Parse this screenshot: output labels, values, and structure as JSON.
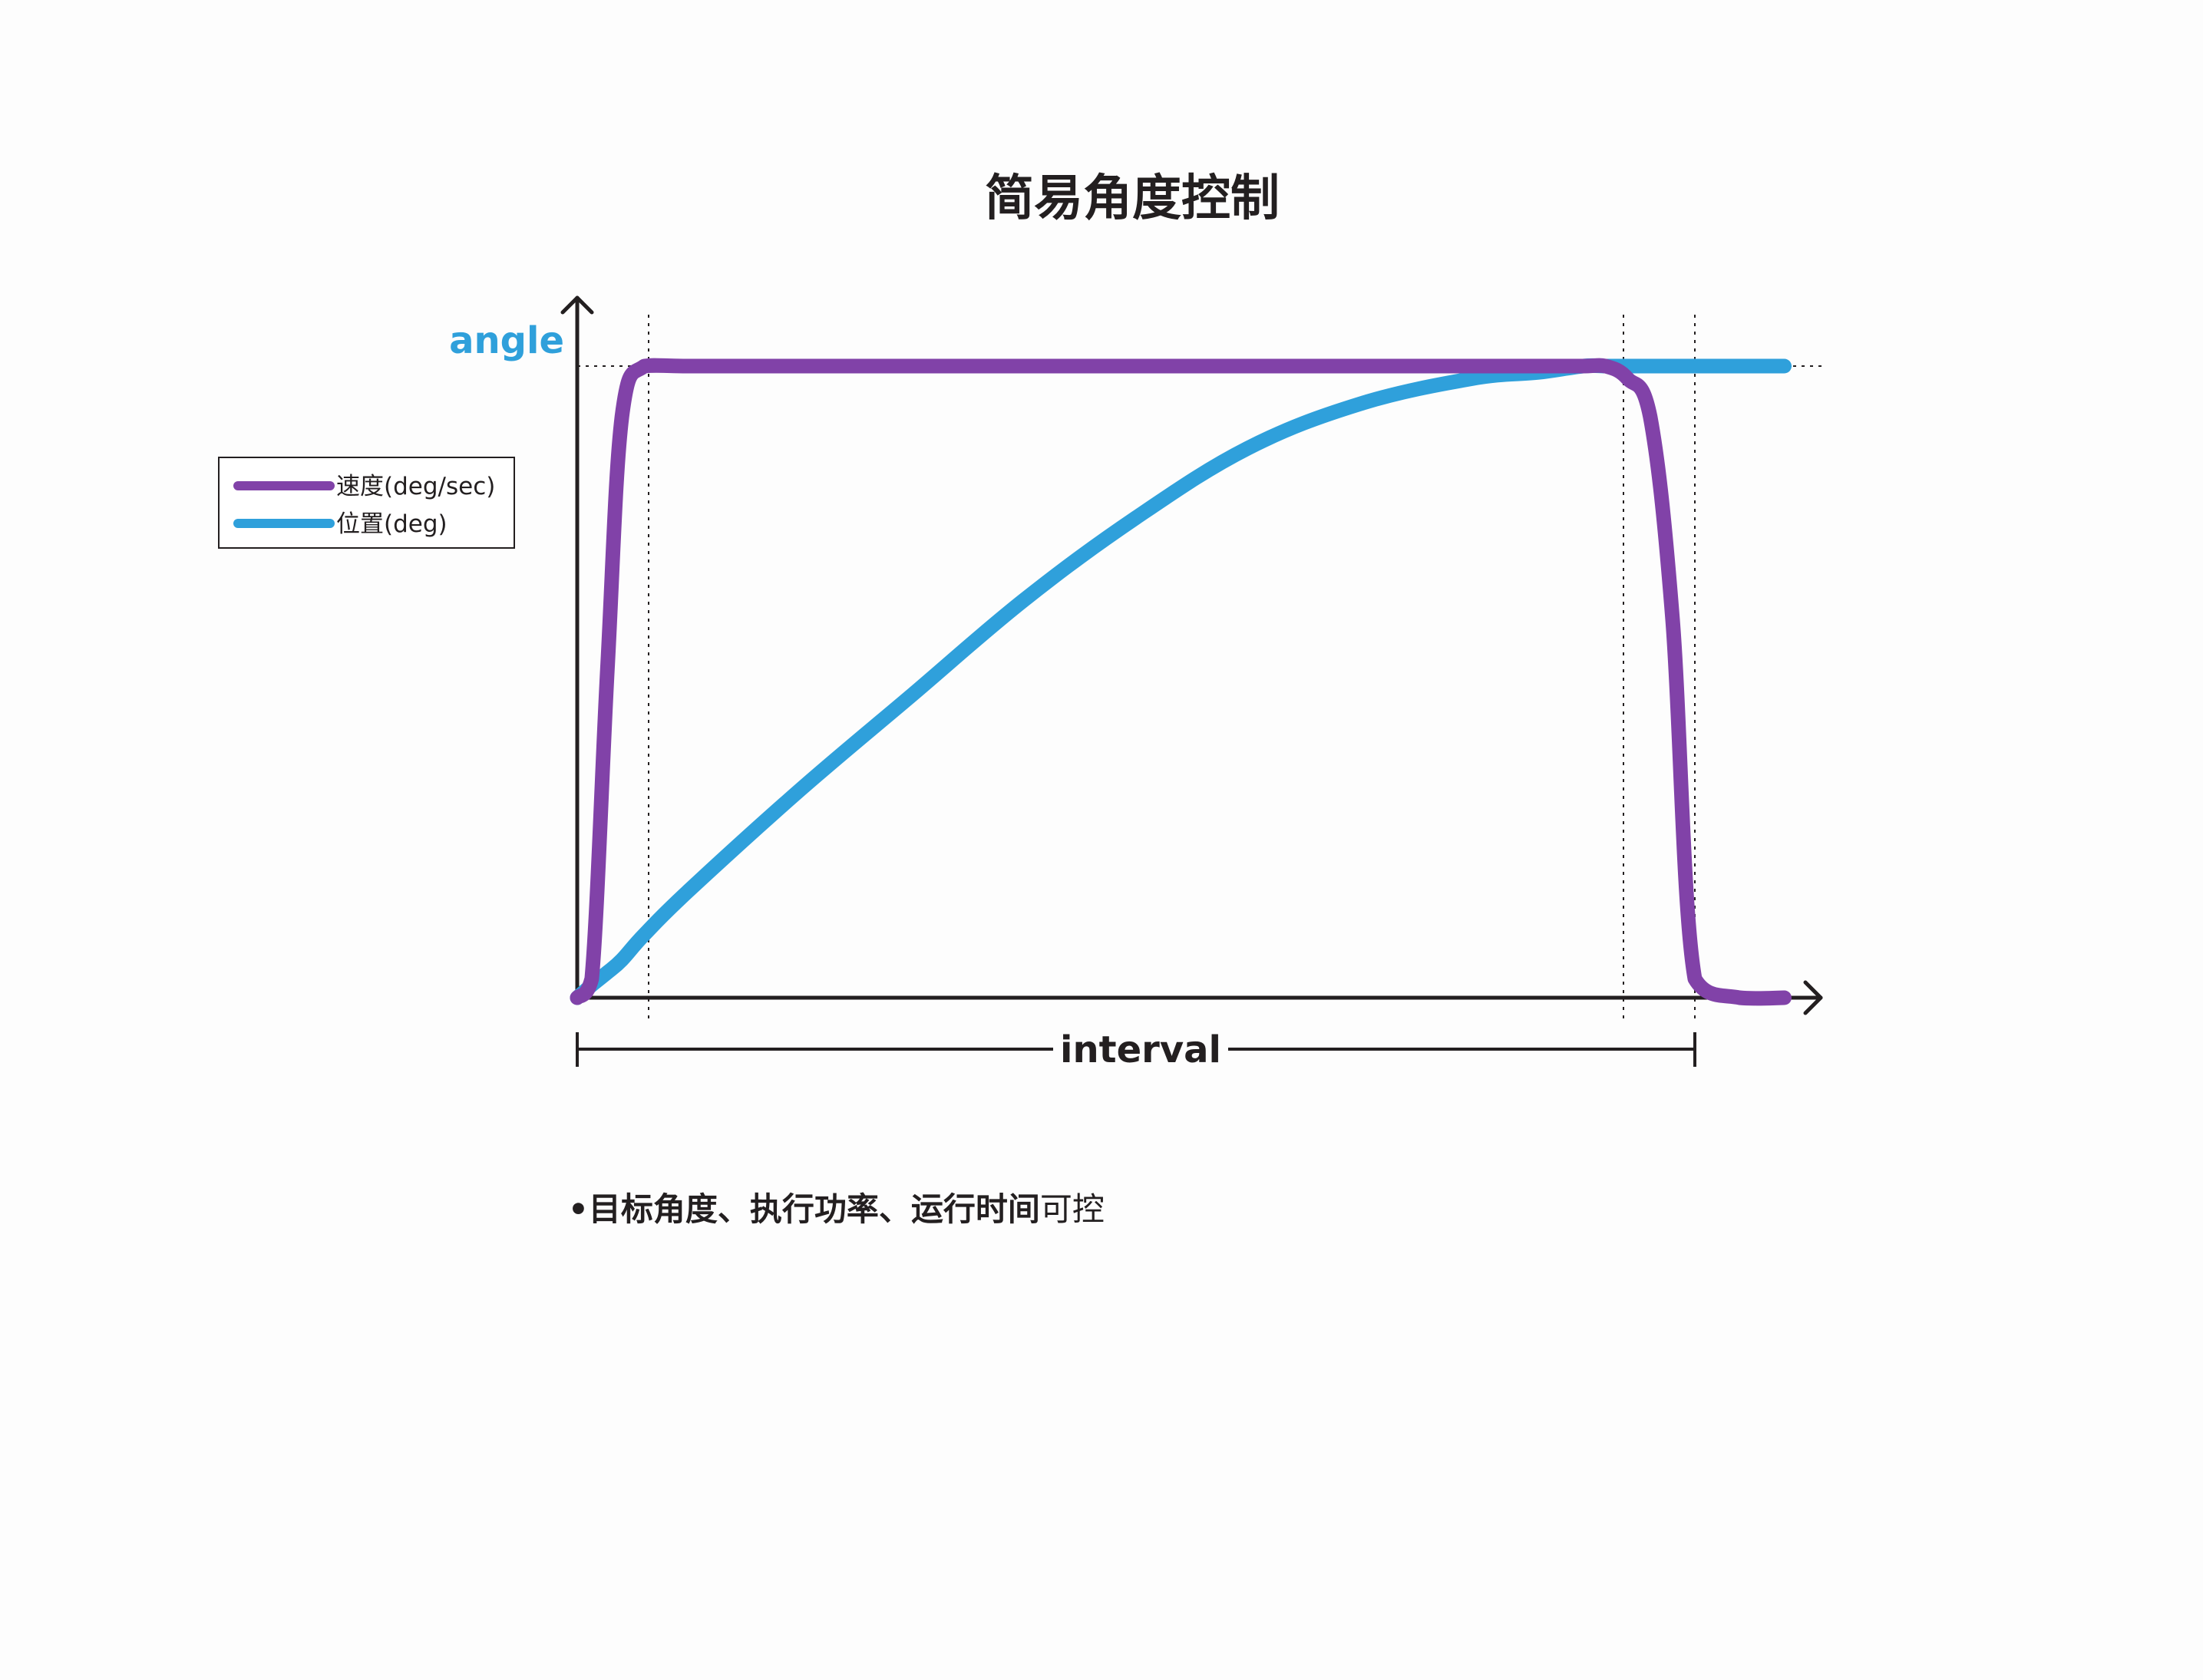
{
  "chart_data": {
    "type": "line",
    "title": "简易角度控制",
    "ylabel": "angle",
    "xlabel": "interval",
    "grid": false,
    "legend_position": "left",
    "x": [
      0,
      0.013,
      0.027,
      0.04,
      0.06,
      0.1,
      0.2,
      0.3,
      0.4,
      0.5,
      0.6,
      0.7,
      0.8,
      0.86,
      0.9,
      0.92,
      0.94,
      0.96,
      0.98,
      1.0,
      1.04,
      1.08
    ],
    "series": [
      {
        "name": "速度(deg/sec)",
        "color": "#8142a8",
        "values": [
          0,
          0.03,
          0.52,
          0.92,
          1.0,
          1.0,
          1.0,
          1.0,
          1.0,
          1.0,
          1.0,
          1.0,
          1.0,
          1.0,
          1.0,
          1.0,
          0.98,
          0.92,
          0.6,
          0.03,
          0,
          0
        ]
      },
      {
        "name": "位置(deg)",
        "color": "#2fa0db",
        "values": [
          0,
          0.02,
          0.04,
          0.06,
          0.1,
          0.17,
          0.33,
          0.48,
          0.63,
          0.76,
          0.87,
          0.94,
          0.98,
          0.99,
          1.0,
          1.0,
          1.0,
          1.0,
          1.0,
          1.0,
          1.0,
          1.0
        ]
      }
    ]
  },
  "note": {
    "bullet": "•",
    "bold_text": "目标角度、执行功率、运行时间",
    "normal_text": "可控"
  },
  "colors": {
    "axis": "#231f20",
    "velocity": "#8142a8",
    "position": "#2fa0db",
    "ylabel": "#2fa0db"
  }
}
